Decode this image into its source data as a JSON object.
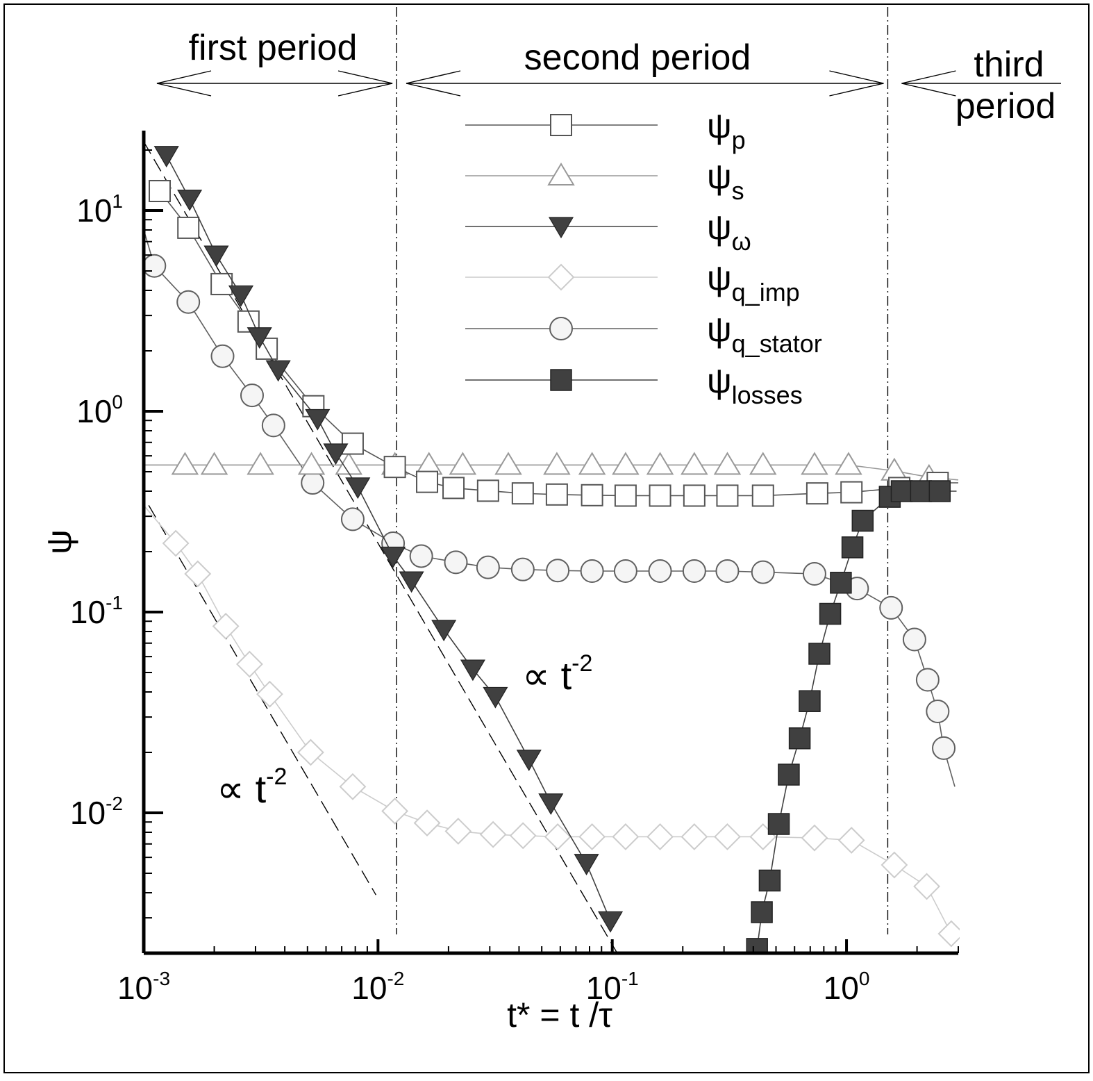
{
  "chart_data": {
    "type": "line",
    "title": "",
    "xlabel": {
      "main": "t* = t /",
      "greek": "τ"
    },
    "ylabel": "ψ",
    "x_scale": "log",
    "y_scale": "log",
    "xlim": [
      0.001,
      3.0
    ],
    "ylim": [
      0.002,
      25
    ],
    "x_ticks": [
      {
        "base": "10",
        "exp": "-3",
        "value": 0.001
      },
      {
        "base": "10",
        "exp": "-2",
        "value": 0.01
      },
      {
        "base": "10",
        "exp": "-1",
        "value": 0.1
      },
      {
        "base": "10",
        "exp": "0",
        "value": 1
      }
    ],
    "y_ticks": [
      {
        "base": "10",
        "exp": "-2",
        "value": 0.01
      },
      {
        "base": "10",
        "exp": "-1",
        "value": 0.1
      },
      {
        "base": "10",
        "exp": "0",
        "value": 1
      },
      {
        "base": "10",
        "exp": "1",
        "value": 10
      }
    ],
    "grid": false,
    "legend_position": "top-center",
    "period_boundaries": [
      0.012,
      1.5
    ],
    "period_labels": {
      "first": "first period",
      "second": "second period",
      "third_line1": "third",
      "third_line2": "period"
    },
    "annotations": [
      {
        "symbol": "∝",
        "text": "t",
        "exp": "-2",
        "x": 0.0018,
        "y": 0.0125
      },
      {
        "symbol": "∝",
        "text": "t",
        "exp": "-2",
        "x": 0.09,
        "y": 0.07
      }
    ],
    "reference_lines": [
      {
        "name": "t^-2 (lower)",
        "x": [
          0.00105,
          0.0098
        ],
        "y": [
          0.34,
          0.0039
        ]
      },
      {
        "name": "t^-2 (upper)",
        "x": [
          0.001,
          0.105
        ],
        "y": [
          22,
          0.002
        ]
      }
    ],
    "series": [
      {
        "name": "ψ",
        "sub": "p",
        "marker": "square-open",
        "color": "#555555",
        "x": [
          0.00117,
          0.00155,
          0.00215,
          0.0028,
          0.00335,
          0.0053,
          0.0078,
          0.0118,
          0.0162,
          0.021,
          0.0295,
          0.0415,
          0.058,
          0.082,
          0.114,
          0.16,
          0.224,
          0.31,
          0.44,
          0.75,
          1.05,
          1.68,
          2.45,
          3.0
        ],
        "y": [
          12.5,
          8.2,
          4.3,
          2.8,
          2.05,
          1.06,
          0.69,
          0.528,
          0.445,
          0.415,
          0.402,
          0.39,
          0.385,
          0.382,
          0.38,
          0.38,
          0.38,
          0.38,
          0.38,
          0.39,
          0.395,
          0.415,
          0.44,
          0.44
        ]
      },
      {
        "name": "ψ",
        "sub": "s",
        "marker": "triangle-up-open",
        "color": "#999999",
        "x": [
          0.001,
          0.0015,
          0.002,
          0.00315,
          0.0052,
          0.0075,
          0.0118,
          0.0165,
          0.023,
          0.036,
          0.058,
          0.082,
          0.114,
          0.16,
          0.224,
          0.31,
          0.44,
          0.73,
          1.02,
          1.6,
          2.25,
          3.0
        ],
        "y": [
          0.54,
          0.54,
          0.54,
          0.54,
          0.54,
          0.54,
          0.54,
          0.54,
          0.54,
          0.54,
          0.54,
          0.54,
          0.54,
          0.54,
          0.54,
          0.54,
          0.54,
          0.54,
          0.54,
          0.505,
          0.47,
          0.455
        ]
      },
      {
        "name": "ψ",
        "sub": "ω",
        "marker": "triangle-down-filled",
        "color": "#404040",
        "x": [
          0.00125,
          0.00157,
          0.00204,
          0.0026,
          0.00312,
          0.00375,
          0.00552,
          0.0066,
          0.0082,
          0.0116,
          0.0139,
          0.0191,
          0.0254,
          0.0317,
          0.0441,
          0.0547,
          0.0776,
          0.0982
        ],
        "y": [
          18.8,
          11.4,
          6.0,
          3.8,
          2.35,
          1.61,
          0.92,
          0.62,
          0.42,
          0.19,
          0.143,
          0.082,
          0.052,
          0.038,
          0.0185,
          0.0112,
          0.0056,
          0.0029
        ]
      },
      {
        "name": "ψ",
        "sub": "q_imp",
        "marker": "diamond-open",
        "color": "#cccccc",
        "x": [
          0.001,
          0.00137,
          0.0017,
          0.00224,
          0.00283,
          0.00345,
          0.00516,
          0.0078,
          0.0118,
          0.0162,
          0.022,
          0.031,
          0.0416,
          0.0585,
          0.082,
          0.114,
          0.16,
          0.224,
          0.31,
          0.44,
          0.73,
          1.05,
          1.6,
          2.2,
          2.8
        ],
        "y": [
          0.34,
          0.22,
          0.155,
          0.085,
          0.055,
          0.039,
          0.02,
          0.0135,
          0.0102,
          0.0089,
          0.0081,
          0.0078,
          0.0077,
          0.0076,
          0.0076,
          0.0076,
          0.0076,
          0.0076,
          0.0076,
          0.0076,
          0.0075,
          0.0073,
          0.0055,
          0.0043,
          0.0025
        ]
      },
      {
        "name": "ψ",
        "sub": "q_stator",
        "marker": "circle-open",
        "color": "#606060",
        "x": [
          0.001,
          0.00111,
          0.00155,
          0.00217,
          0.0029,
          0.00358,
          0.00526,
          0.0078,
          0.0116,
          0.0153,
          0.0215,
          0.0295,
          0.0415,
          0.0585,
          0.082,
          0.114,
          0.16,
          0.224,
          0.31,
          0.44,
          0.73,
          1.11,
          1.55,
          1.95,
          2.22,
          2.45,
          2.6,
          2.9
        ],
        "y": [
          8.0,
          5.3,
          3.5,
          1.88,
          1.2,
          0.85,
          0.44,
          0.29,
          0.22,
          0.19,
          0.177,
          0.167,
          0.163,
          0.161,
          0.16,
          0.16,
          0.16,
          0.16,
          0.16,
          0.158,
          0.155,
          0.131,
          0.105,
          0.073,
          0.046,
          0.032,
          0.021,
          0.0135
        ]
      },
      {
        "name": "ψ",
        "sub": "losses",
        "marker": "square-filled",
        "color": "#404040",
        "x": [
          0.415,
          0.435,
          0.47,
          0.514,
          0.567,
          0.631,
          0.696,
          0.766,
          0.852,
          0.946,
          1.06,
          1.172,
          1.53,
          1.72,
          2.08,
          2.5,
          2.95
        ],
        "y": [
          0.0021,
          0.0032,
          0.0046,
          0.0088,
          0.0155,
          0.0235,
          0.036,
          0.062,
          0.098,
          0.14,
          0.21,
          0.285,
          0.375,
          0.4,
          0.4,
          0.4,
          0.4
        ]
      }
    ]
  }
}
